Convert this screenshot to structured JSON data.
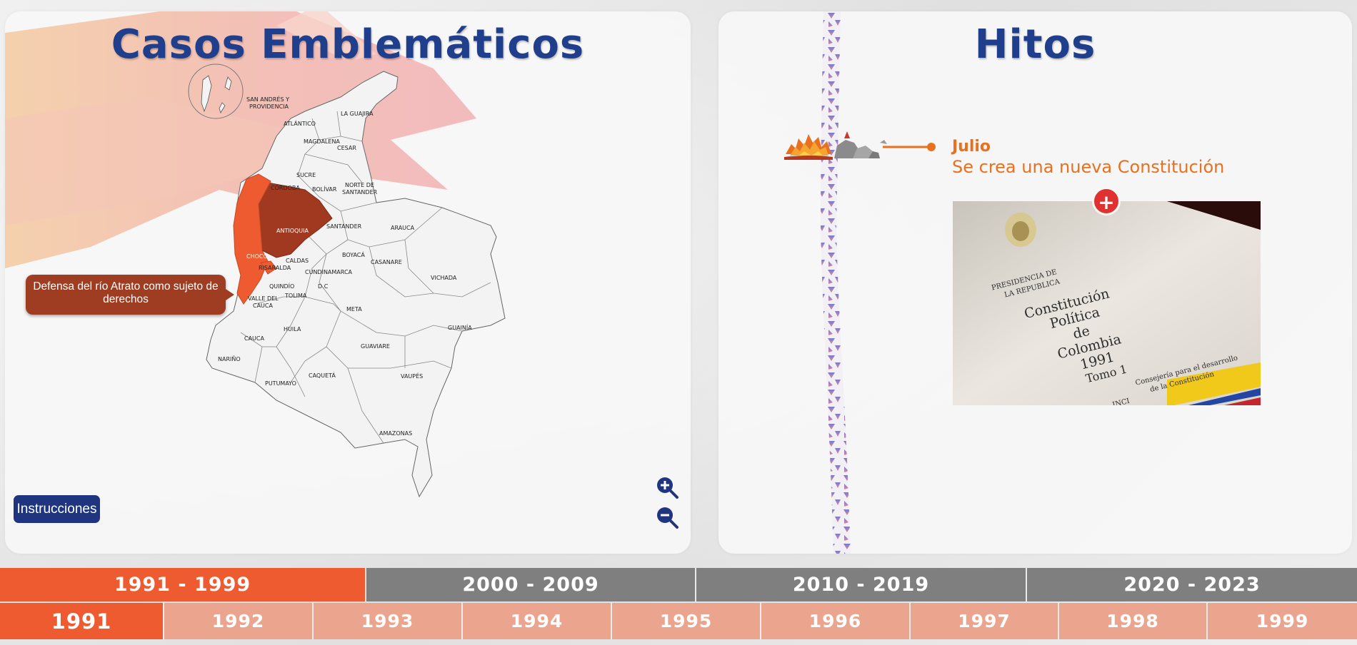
{
  "left_panel": {
    "title": "Casos Emblemáticos",
    "case_tooltip": "Defensa del río Atrato como sujeto de derechos",
    "instructions_label": "Instrucciones",
    "zoom_in_icon": "zoom-in-icon",
    "zoom_out_icon": "zoom-out-icon",
    "map": {
      "highlight_color_dark": "#a0391f",
      "highlight_color_light": "#ee5b31",
      "departments": [
        "SAN ANDRÉS Y",
        "PROVIDENCIA",
        "LA GUAJIRA",
        "ATLÁNTICO",
        "MAGDALENA",
        "CESAR",
        "SUCRE",
        "CÓRDOBA",
        "BOLÍVAR",
        "NORTE DE",
        "SANTANDER",
        "ANTIOQUIA",
        "SANTANDER",
        "ARAUCA",
        "CHOCÓ",
        "CALDAS",
        "BOYACÁ",
        "CASANARE",
        "RISARALDA",
        "CUNDINAMARCA",
        "VICHADA",
        "QUINDÍO",
        "D.C",
        "TOLIMA",
        "VALLE DEL",
        "CAUCA",
        "META",
        "HUILA",
        "GUAINÍA",
        "CAUCA",
        "NARIÑO",
        "GUAVIARE",
        "PUTUMAYO",
        "CAQUETÁ",
        "VAUPÉS",
        "AMAZONAS"
      ]
    }
  },
  "right_panel": {
    "title": "Hitos",
    "event": {
      "month": "Julio",
      "title": "Se crea una nueva Constitución",
      "more_label": "+",
      "photo": {
        "line1": "PRESIDENCIA DE",
        "line2": "LA REPUBLICA",
        "book_title_1": "Constitución",
        "book_title_2": "Política",
        "book_title_3": "de",
        "book_title_4": "Colombia",
        "book_title_5": "1991",
        "book_title_6": "Tomo 1",
        "footer_1": "Consejería para el desarrollo",
        "footer_2": "de la Constitución",
        "footer_3": "INCI"
      }
    }
  },
  "decades": [
    "1991 - 1999",
    "2000 - 2009",
    "2010 - 2019",
    "2020 - 2023"
  ],
  "years": [
    "1991",
    "1992",
    "1993",
    "1994",
    "1995",
    "1996",
    "1997",
    "1998",
    "1999"
  ],
  "active_decade": "1991 - 1999",
  "active_year": "1991",
  "colors": {
    "title_blue": "#1f3f8c",
    "accent_orange": "#ee5b31",
    "event_orange": "#e8701f",
    "decade_gray": "#7f7f7f",
    "year_pink": "#eba58f",
    "instructions_blue": "#1f3580"
  }
}
